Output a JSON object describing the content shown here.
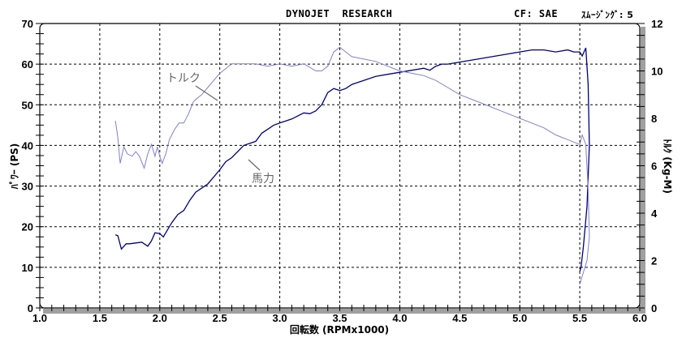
{
  "header": {
    "title": "DYNOJET  RESEARCH",
    "correction": "CF: SAE",
    "smoothing": "ｽﾑｰｼﾞﾝｸﾞ: 5"
  },
  "colors": {
    "power": "#000080",
    "torque": "#8080d0",
    "grid": "#000000",
    "frame_shadow": "#a0a0a0",
    "annotation": "#666666"
  },
  "annotations": {
    "torque_label": "トルク",
    "power_label": "馬力"
  },
  "chart_data": {
    "type": "line",
    "title": "DYNOJET RESEARCH",
    "xlabel": "回転数 (RPMx1000)",
    "ylabel_left": "ﾊﾟﾜｰ (PS)",
    "ylabel_right": "ﾄﾙｸ (Kg-M)",
    "xlim": [
      1.0,
      6.0
    ],
    "ylim_left": [
      0,
      70
    ],
    "ylim_right": [
      0,
      12
    ],
    "x_ticks": [
      "1.0",
      "1.5",
      "2.0",
      "2.5",
      "3.0",
      "3.5",
      "4.0",
      "4.5",
      "5.0",
      "5.5",
      "6.0"
    ],
    "y_left_ticks": [
      "0",
      "10",
      "20",
      "30",
      "40",
      "50",
      "60",
      "70"
    ],
    "y_right_ticks": [
      "0",
      "2",
      "4",
      "6",
      "8",
      "10",
      "12"
    ],
    "grid": true,
    "series": [
      {
        "name": "馬力",
        "axis": "left",
        "unit": "PS",
        "x": [
          1.63,
          1.65,
          1.68,
          1.72,
          1.75,
          1.8,
          1.85,
          1.9,
          1.93,
          1.96,
          2.0,
          2.03,
          2.06,
          2.1,
          2.15,
          2.2,
          2.25,
          2.3,
          2.4,
          2.5,
          2.55,
          2.6,
          2.7,
          2.8,
          2.85,
          2.9,
          2.95,
          3.0,
          3.1,
          3.2,
          3.25,
          3.3,
          3.35,
          3.4,
          3.45,
          3.5,
          3.55,
          3.6,
          3.7,
          3.8,
          3.9,
          4.0,
          4.1,
          4.2,
          4.25,
          4.3,
          4.35,
          4.4,
          4.5,
          4.6,
          4.7,
          4.8,
          4.9,
          5.0,
          5.1,
          5.2,
          5.3,
          5.4,
          5.45,
          5.5,
          5.52,
          5.55,
          5.57,
          5.58,
          5.56,
          5.53,
          5.51,
          5.5
        ],
        "values": [
          18,
          17.8,
          14.5,
          15.8,
          15.8,
          16,
          16.2,
          15.2,
          16.5,
          18.5,
          18.3,
          17.5,
          19,
          21,
          23,
          24,
          26.5,
          28.5,
          30.5,
          34,
          36,
          37,
          40,
          41,
          43,
          44,
          45,
          45.5,
          46.5,
          48,
          47.8,
          48.5,
          50,
          53,
          54,
          53.5,
          54,
          55,
          56,
          57,
          57.5,
          58,
          58.5,
          59,
          58.5,
          59.5,
          60,
          60,
          60.5,
          61,
          61.5,
          62,
          62.5,
          63,
          63.5,
          63.5,
          63,
          63.5,
          63,
          63,
          62,
          64,
          55,
          40,
          25,
          15,
          10,
          9
        ]
      },
      {
        "name": "トルク",
        "axis": "right",
        "unit": "Kg-M",
        "x": [
          1.63,
          1.65,
          1.67,
          1.7,
          1.73,
          1.77,
          1.8,
          1.83,
          1.87,
          1.9,
          1.93,
          1.96,
          1.98,
          2.0,
          2.02,
          2.05,
          2.08,
          2.12,
          2.16,
          2.2,
          2.24,
          2.28,
          2.3,
          2.35,
          2.4,
          2.45,
          2.5,
          2.55,
          2.6,
          2.7,
          2.8,
          2.9,
          3.0,
          3.1,
          3.2,
          3.3,
          3.35,
          3.4,
          3.45,
          3.5,
          3.55,
          3.6,
          3.7,
          3.8,
          3.9,
          4.0,
          4.1,
          4.2,
          4.3,
          4.4,
          4.5,
          4.6,
          4.7,
          4.8,
          4.9,
          5.0,
          5.1,
          5.2,
          5.3,
          5.4,
          5.45,
          5.5,
          5.52,
          5.55,
          5.57,
          5.58,
          5.56,
          5.53,
          5.5
        ],
        "values": [
          7.9,
          7.2,
          6.1,
          6.8,
          6.5,
          6.4,
          6.6,
          6.4,
          5.9,
          6.5,
          6.9,
          6.4,
          6.8,
          6.4,
          6.1,
          6.5,
          7.1,
          7.5,
          7.8,
          7.8,
          8.2,
          8.7,
          8.8,
          9.0,
          9.3,
          9.6,
          9.9,
          10.1,
          10.3,
          10.3,
          10.3,
          10.2,
          10.3,
          10.2,
          10.3,
          10.0,
          10.0,
          10.2,
          10.8,
          11.0,
          10.8,
          10.6,
          10.5,
          10.4,
          10.2,
          10.0,
          9.9,
          9.8,
          9.6,
          9.3,
          9.0,
          8.8,
          8.6,
          8.4,
          8.2,
          8.0,
          7.8,
          7.6,
          7.3,
          7.1,
          7.0,
          6.9,
          7.3,
          6.9,
          5.0,
          3.0,
          2.0,
          1.5,
          1.0
        ]
      }
    ]
  }
}
